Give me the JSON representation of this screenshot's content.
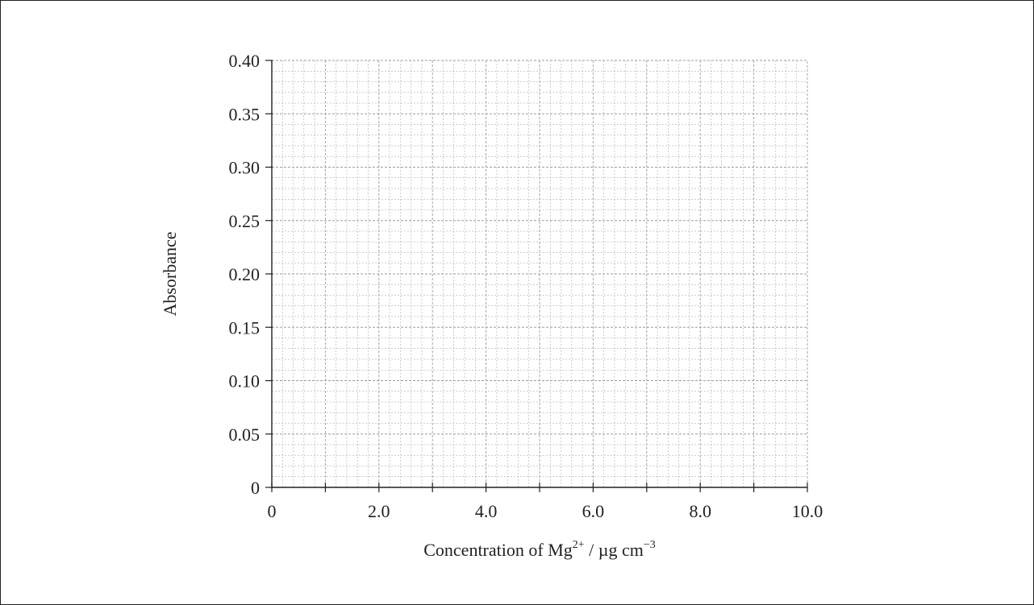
{
  "chart_data": {
    "type": "scatter",
    "title": "",
    "xlabel": {
      "text": "Concentration of Mg",
      "superscript": "2+",
      "unit_text": " / µg cm",
      "unit_superscript": "−3"
    },
    "ylabel": "Absorbance",
    "xlim": [
      0,
      10
    ],
    "ylim": [
      0,
      0.4
    ],
    "x_ticks": [
      0,
      2,
      4,
      6,
      8,
      10
    ],
    "x_tick_labels": [
      "0",
      "2.0",
      "4.0",
      "6.0",
      "8.0",
      "10.0"
    ],
    "x_minor_ticks": [
      1,
      3,
      5,
      7,
      9
    ],
    "y_ticks": [
      0,
      0.05,
      0.1,
      0.15,
      0.2,
      0.25,
      0.3,
      0.35,
      0.4
    ],
    "y_tick_labels": [
      "0",
      "0.05",
      "0.10",
      "0.15",
      "0.20",
      "0.25",
      "0.30",
      "0.35",
      "0.40"
    ],
    "grid": true,
    "grid_x_divisions": 50,
    "grid_y_divisions": 40,
    "series": [],
    "colors": {
      "ink": "#231f20",
      "grid": "#9d9d9d",
      "frame": "#231f20"
    }
  }
}
